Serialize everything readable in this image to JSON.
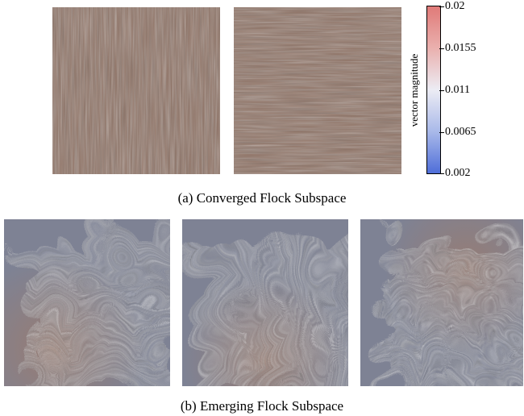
{
  "figure": {
    "caption_a": "(a) Converged Flock Subspace",
    "caption_b": "(b) Emerging Flock Subspace"
  },
  "colorbar": {
    "label": "vector magnitude",
    "ticks": [
      "0.02",
      "0.0155",
      "0.011",
      "0.0065",
      "0.002"
    ],
    "colors": {
      "high": "#e07a78",
      "mid": "#ececf4",
      "low": "#4f6ed9"
    }
  },
  "panels": {
    "a1": {
      "base_color": "#8f7264",
      "streak_color": "#d8cfc8",
      "orientation": "vertical"
    },
    "a2": {
      "base_color": "#8f7264",
      "streak_color": "#d8cfc8",
      "orientation": "horizontal"
    },
    "b1": {
      "base_color": "#7e8294",
      "streak_color": "#d9d7d8",
      "orientation": "swirl-left"
    },
    "b2": {
      "base_color": "#7e8294",
      "streak_color": "#d9d7d8",
      "orientation": "swirl-center"
    },
    "b3": {
      "base_color": "#7e8294",
      "streak_color": "#d9d7d8",
      "orientation": "swirl-right"
    }
  }
}
